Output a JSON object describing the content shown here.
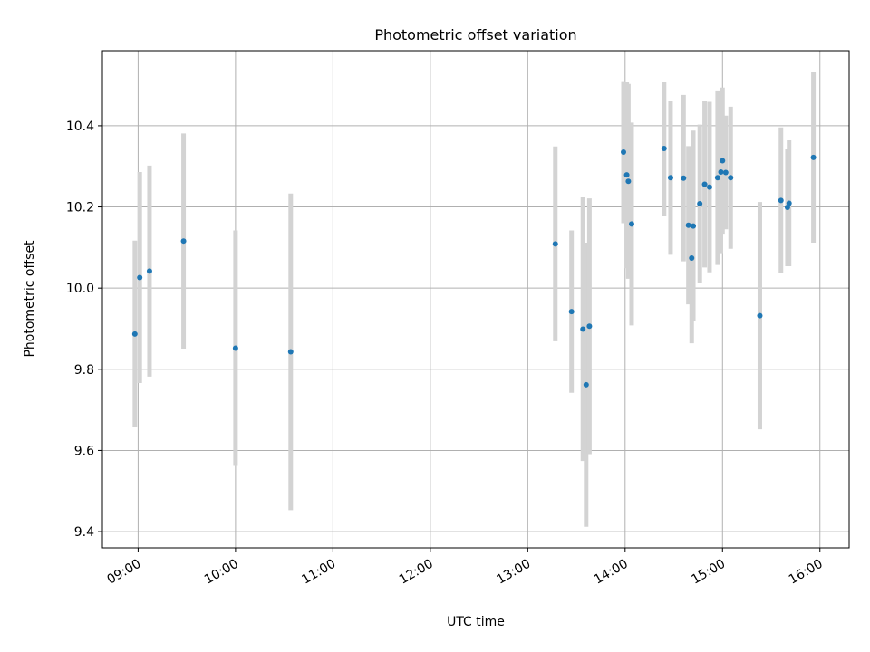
{
  "chart_data": {
    "type": "scatter",
    "title": "Photometric offset variation",
    "xlabel": "UTC time",
    "ylabel": "Photometric offset",
    "grid": true,
    "xlim": [
      "08:38",
      "16:18"
    ],
    "ylim": [
      9.36,
      10.585
    ],
    "xticks": [
      "09:00",
      "10:00",
      "11:00",
      "12:00",
      "13:00",
      "14:00",
      "15:00",
      "16:00"
    ],
    "yticks": [
      9.4,
      9.6,
      9.8,
      10.0,
      10.2,
      10.4
    ],
    "ytick_labels": [
      "9.4",
      "9.6",
      "9.8",
      "10.0",
      "10.2",
      "10.4"
    ],
    "colors": {
      "point": "#1f77b4",
      "errorbar": "#d3d3d3",
      "grid": "#b0b0b0"
    },
    "series": [
      {
        "points": [
          {
            "x": "08:58",
            "y": 9.887,
            "err": 0.23
          },
          {
            "x": "09:01",
            "y": 10.026,
            "err": 0.26
          },
          {
            "x": "09:07",
            "y": 10.042,
            "err": 0.26
          },
          {
            "x": "09:28",
            "y": 10.116,
            "err": 0.265
          },
          {
            "x": "10:00",
            "y": 9.852,
            "err": 0.29
          },
          {
            "x": "10:34",
            "y": 9.843,
            "err": 0.39
          },
          {
            "x": "13:17",
            "y": 10.109,
            "err": 0.24
          },
          {
            "x": "13:27",
            "y": 9.942,
            "err": 0.2
          },
          {
            "x": "13:34",
            "y": 9.899,
            "err": 0.325
          },
          {
            "x": "13:36",
            "y": 9.762,
            "err": 0.35
          },
          {
            "x": "13:38",
            "y": 9.906,
            "err": 0.315
          },
          {
            "x": "13:59",
            "y": 10.335,
            "err": 0.175
          },
          {
            "x": "14:01",
            "y": 10.279,
            "err": 0.23
          },
          {
            "x": "14:02",
            "y": 10.263,
            "err": 0.24
          },
          {
            "x": "14:04",
            "y": 10.158,
            "err": 0.25
          },
          {
            "x": "14:24",
            "y": 10.344,
            "err": 0.165
          },
          {
            "x": "14:28",
            "y": 10.272,
            "err": 0.19
          },
          {
            "x": "14:36",
            "y": 10.271,
            "err": 0.205
          },
          {
            "x": "14:39",
            "y": 10.155,
            "err": 0.195
          },
          {
            "x": "14:41",
            "y": 10.074,
            "err": 0.21
          },
          {
            "x": "14:42",
            "y": 10.153,
            "err": 0.235
          },
          {
            "x": "14:46",
            "y": 10.208,
            "err": 0.195
          },
          {
            "x": "14:49",
            "y": 10.256,
            "err": 0.205
          },
          {
            "x": "14:52",
            "y": 10.249,
            "err": 0.21
          },
          {
            "x": "14:57",
            "y": 10.272,
            "err": 0.215
          },
          {
            "x": "14:59",
            "y": 10.286,
            "err": 0.2
          },
          {
            "x": "15:00",
            "y": 10.314,
            "err": 0.18
          },
          {
            "x": "15:02",
            "y": 10.285,
            "err": 0.14
          },
          {
            "x": "15:05",
            "y": 10.272,
            "err": 0.175
          },
          {
            "x": "15:23",
            "y": 9.932,
            "err": 0.28
          },
          {
            "x": "15:36",
            "y": 10.216,
            "err": 0.18
          },
          {
            "x": "15:40",
            "y": 10.199,
            "err": 0.145
          },
          {
            "x": "15:41",
            "y": 10.209,
            "err": 0.155
          },
          {
            "x": "15:56",
            "y": 10.322,
            "err": 0.21
          }
        ]
      }
    ]
  }
}
